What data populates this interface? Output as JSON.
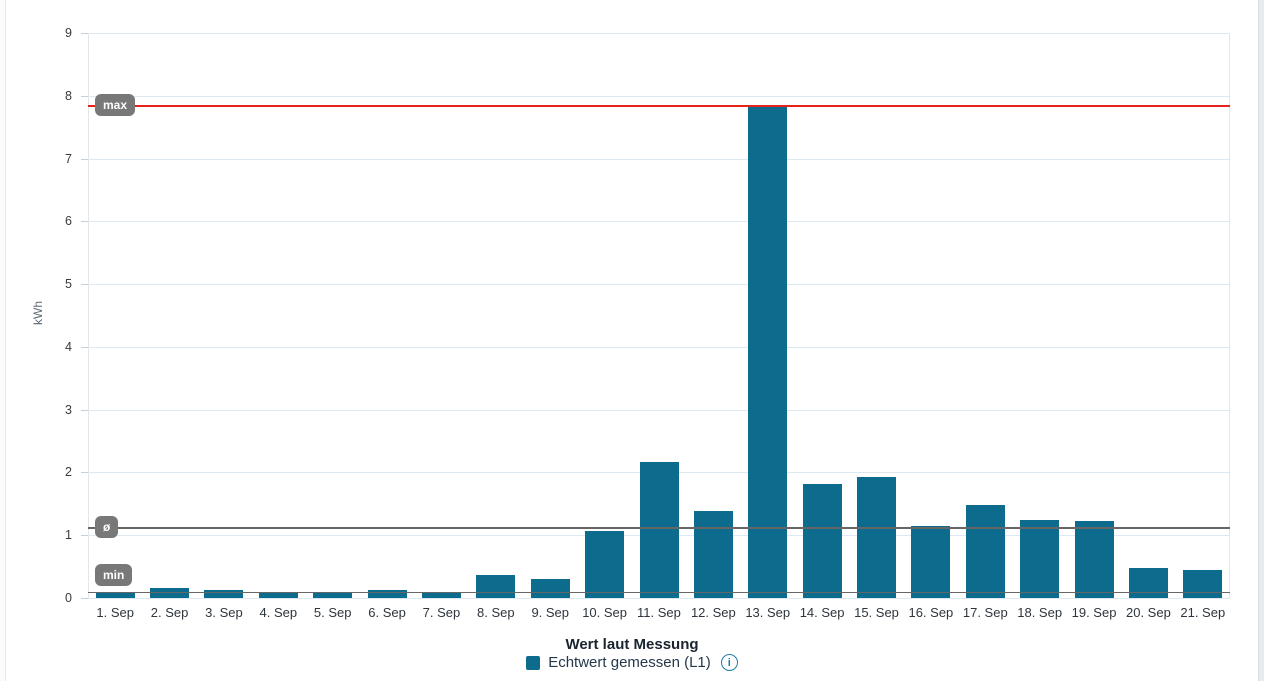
{
  "chart_data": {
    "type": "bar",
    "title": "Wert laut Messung",
    "xlabel": "",
    "ylabel": "kWh",
    "ylim": [
      0,
      9
    ],
    "yticks": [
      0,
      1,
      2,
      3,
      4,
      5,
      6,
      7,
      8,
      9
    ],
    "grid": true,
    "legend_position": "bottom",
    "categories": [
      "1. Sep",
      "2. Sep",
      "3. Sep",
      "4. Sep",
      "5. Sep",
      "6. Sep",
      "7. Sep",
      "8. Sep",
      "9. Sep",
      "10. Sep",
      "11. Sep",
      "12. Sep",
      "13. Sep",
      "14. Sep",
      "15. Sep",
      "16. Sep",
      "17. Sep",
      "18. Sep",
      "19. Sep",
      "20. Sep",
      "21. Sep"
    ],
    "series": [
      {
        "name": "Echtwert gemessen (L1)",
        "color": "#0d6b8d",
        "values": [
          0.1,
          0.16,
          0.12,
          0.1,
          0.1,
          0.13,
          0.1,
          0.36,
          0.31,
          1.07,
          2.17,
          1.39,
          7.86,
          1.81,
          1.93,
          1.15,
          1.48,
          1.24,
          1.23,
          0.47,
          0.45
        ]
      }
    ],
    "markers": [
      {
        "id": "max",
        "label": "max",
        "value": 7.86,
        "line_color": "#e5231b",
        "line_thickness": 2,
        "placement": "center"
      },
      {
        "id": "avg",
        "label": "ø",
        "value": 1.13,
        "line_color": "#666666",
        "line_thickness": 1.5,
        "placement": "center"
      },
      {
        "id": "min",
        "label": "min",
        "value": 0.1,
        "line_color": "#666666",
        "line_thickness": 1.5,
        "placement": "above"
      }
    ]
  },
  "footer": {
    "title": "Wert laut Messung",
    "legend_label": "Echtwert gemessen (L1)",
    "info_icon_glyph": "i"
  },
  "colors": {
    "bar": "#0d6b8d",
    "grid_line": "#dde9f0",
    "max_line": "#e5231b",
    "marker_line": "#666666",
    "pill_background": "#787878",
    "pill_text": "#ffffff"
  }
}
